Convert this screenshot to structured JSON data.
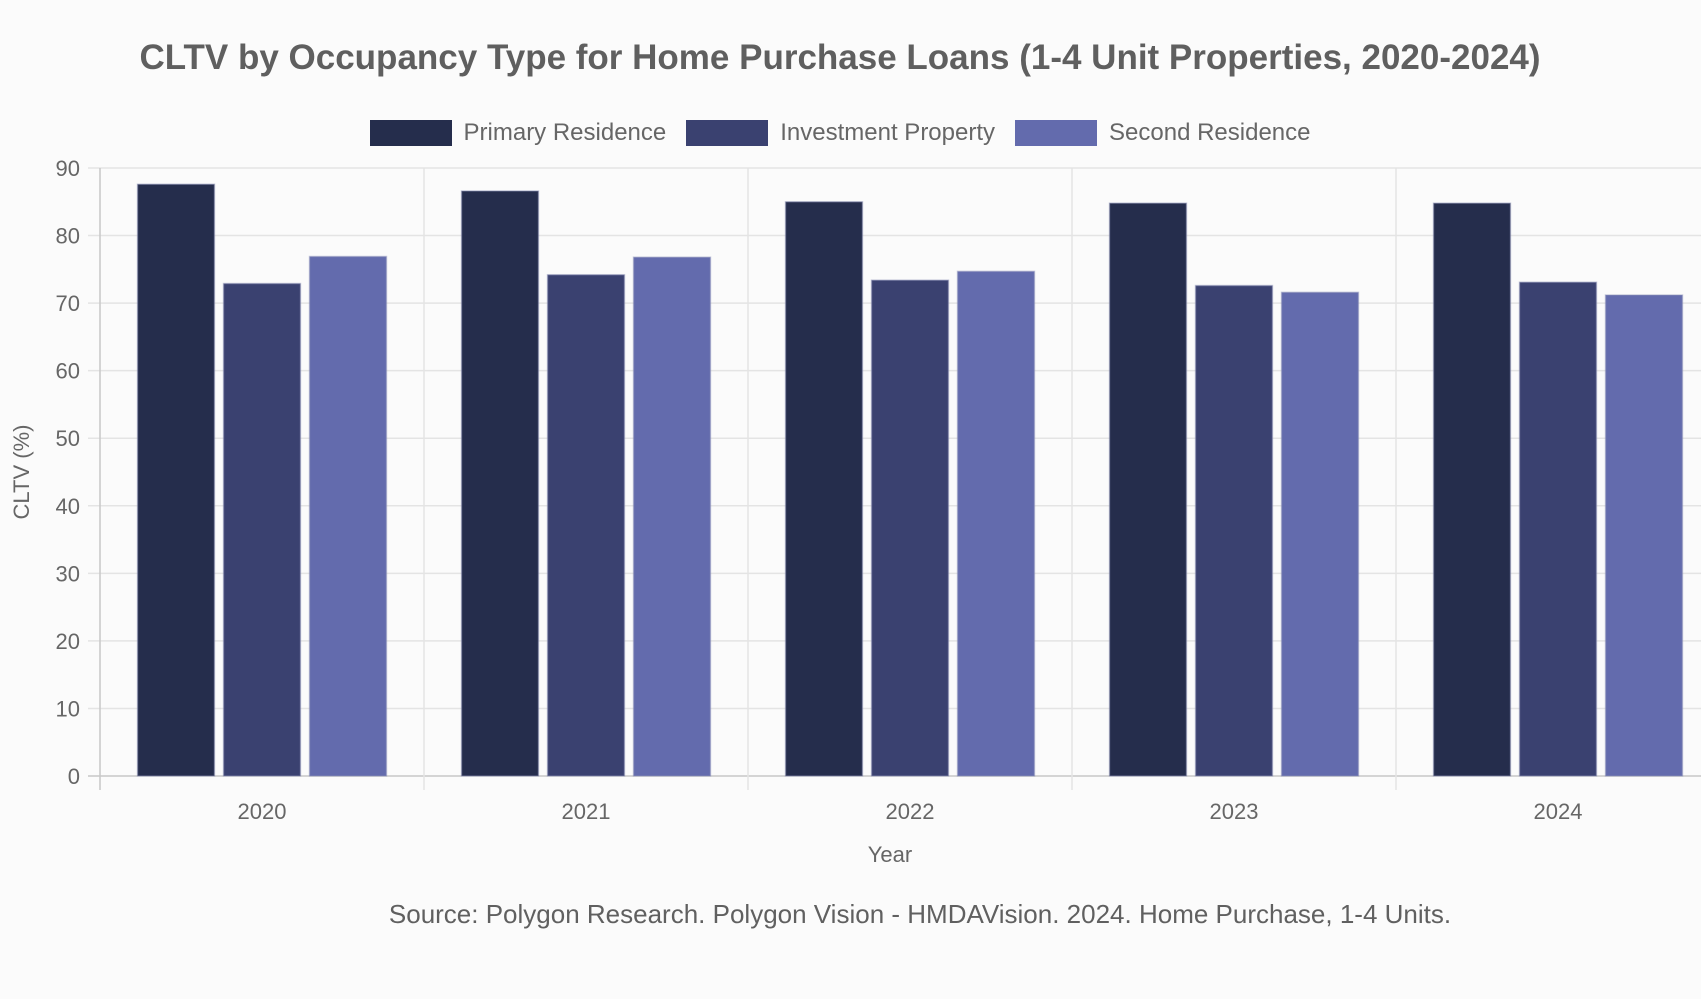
{
  "chart_data": {
    "type": "bar",
    "title": "CLTV by Occupancy Type for Home Purchase Loans (1-4 Unit Properties, 2020-2024)",
    "xlabel": "Year",
    "ylabel": "CLTV (%)",
    "categories": [
      "2020",
      "2021",
      "2022",
      "2023",
      "2024"
    ],
    "series": [
      {
        "name": "Primary Residence",
        "color": "#252d4c",
        "values": [
          87.6,
          86.6,
          85.0,
          84.8,
          84.8
        ]
      },
      {
        "name": "Investment Property",
        "color": "#3a4170",
        "values": [
          72.9,
          74.2,
          73.4,
          72.6,
          73.1
        ]
      },
      {
        "name": "Second Residence",
        "color": "#636bad",
        "values": [
          76.9,
          76.8,
          74.7,
          71.6,
          71.2
        ]
      }
    ],
    "ylim": [
      0,
      90
    ],
    "yticks": [
      "0",
      "10",
      "20",
      "30",
      "40",
      "50",
      "60",
      "70",
      "80",
      "90"
    ],
    "grid": true,
    "legend_position": "top-center"
  },
  "source": "Source: Polygon Research. Polygon Vision - HMDAVision. 2024. Home Purchase, 1-4 Units."
}
